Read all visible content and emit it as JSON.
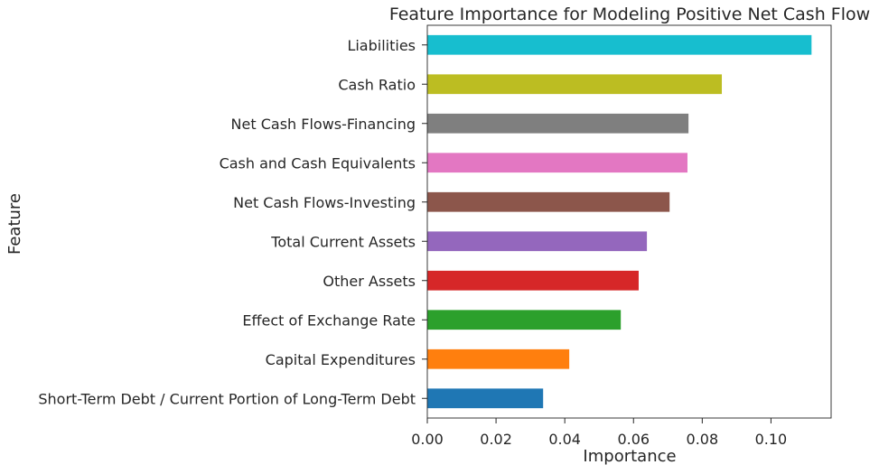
{
  "chart_data": {
    "type": "bar",
    "orientation": "horizontal",
    "title": "Feature Importance for Modeling Positive Net Cash Flow",
    "xlabel": "Importance",
    "ylabel": "Feature",
    "xlim": [
      0,
      0.1175
    ],
    "xticks": [
      0.0,
      0.02,
      0.04,
      0.06,
      0.08,
      0.1
    ],
    "xtick_labels": [
      "0.00",
      "0.02",
      "0.04",
      "0.06",
      "0.08",
      "0.10"
    ],
    "grid": false,
    "categories": [
      "Short-Term Debt / Current Portion of Long-Term Debt",
      "Capital Expenditures",
      "Effect of Exchange Rate",
      "Other Assets",
      "Total Current Assets",
      "Net Cash Flows-Investing",
      "Cash and Cash Equivalents",
      "Net Cash Flows-Financing",
      "Cash Ratio",
      "Liabilities"
    ],
    "values": [
      0.0337,
      0.0413,
      0.0563,
      0.0615,
      0.0639,
      0.0705,
      0.0757,
      0.076,
      0.0857,
      0.1118
    ],
    "colors": [
      "#1f77b4",
      "#ff7f0e",
      "#2ca02c",
      "#d62728",
      "#9467bd",
      "#8c564b",
      "#e377c2",
      "#7f7f7f",
      "#bcbd22",
      "#17becf"
    ]
  }
}
